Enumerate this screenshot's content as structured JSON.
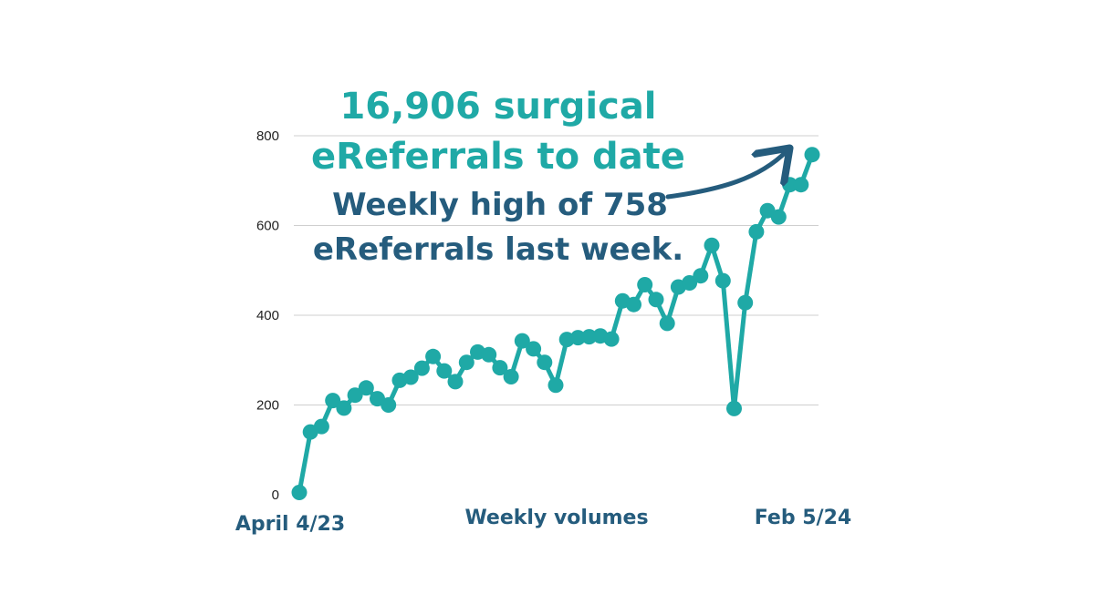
{
  "colors": {
    "accent": "#1fa9a6",
    "navy": "#255c7d",
    "grid": "#cfcfcf"
  },
  "headline": {
    "line1": "16,906 surgical",
    "line2": "eReferrals to date",
    "line3": "Weekly high of 758",
    "line4": "eReferrals last week."
  },
  "chart_data": {
    "type": "line",
    "title": "16,906 surgical eReferrals to date",
    "xlabel": "Weekly volumes",
    "ylabel": "",
    "ylim": [
      0,
      800
    ],
    "yticks": [
      "0",
      "200",
      "400",
      "600",
      "800"
    ],
    "x_start_label": "April 4/23",
    "x_end_label": "Feb 5/24",
    "grid": true,
    "series": [
      {
        "values": [
          5,
          140,
          152,
          210,
          193,
          222,
          238,
          214,
          200,
          255,
          262,
          282,
          308,
          276,
          252,
          295,
          318,
          312,
          283,
          263,
          343,
          325,
          295,
          244,
          346,
          350,
          352,
          354,
          347,
          432,
          424,
          468,
          435,
          382,
          463,
          472,
          488,
          556,
          477,
          192,
          428,
          586,
          633,
          619,
          691,
          691,
          758
        ]
      }
    ],
    "annotation": "Weekly high of 758 eReferrals last week."
  }
}
